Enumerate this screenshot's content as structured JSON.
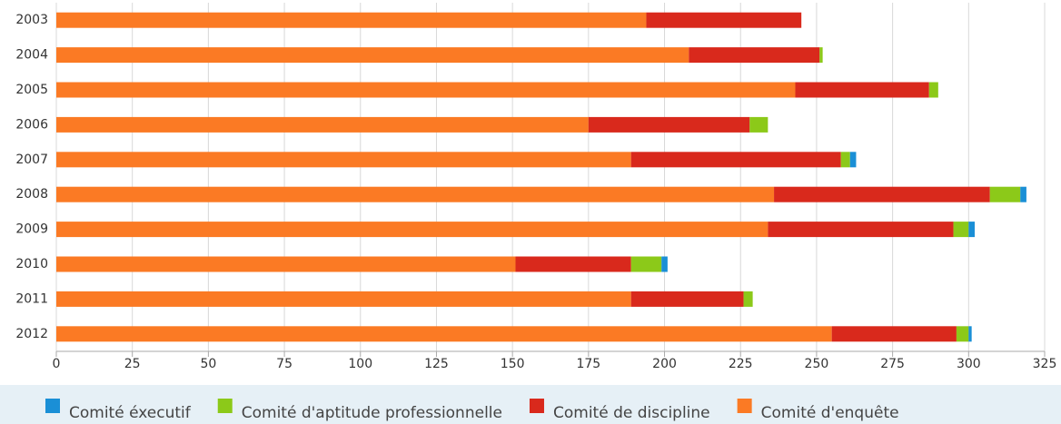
{
  "chart_data": {
    "type": "stacked-bar-horizontal",
    "categories": [
      "2003",
      "2004",
      "2005",
      "2006",
      "2007",
      "2008",
      "2009",
      "2010",
      "2011",
      "2012"
    ],
    "series": [
      {
        "name": "Comité éxecutif",
        "color": "#1a8fd6",
        "values": [
          0,
          0,
          0,
          0,
          2,
          2,
          2,
          2,
          0,
          1
        ]
      },
      {
        "name": "Comité d'aptitude professionnelle",
        "color": "#8cc919",
        "values": [
          0,
          1,
          3,
          6,
          3,
          10,
          5,
          10,
          3,
          4
        ]
      },
      {
        "name": "Comité de discipline",
        "color": "#d9291c",
        "values": [
          51,
          43,
          44,
          53,
          69,
          71,
          61,
          38,
          37,
          41
        ]
      },
      {
        "name": "Comité d'enquête",
        "color": "#fb7a24",
        "values": [
          194,
          208,
          243,
          175,
          189,
          236,
          234,
          151,
          189,
          255
        ]
      }
    ],
    "xlim": [
      0,
      325
    ],
    "xticks": [
      0,
      25,
      50,
      75,
      100,
      125,
      150,
      175,
      200,
      225,
      250,
      275,
      300,
      325
    ],
    "grid": true,
    "legend": "bottom"
  }
}
